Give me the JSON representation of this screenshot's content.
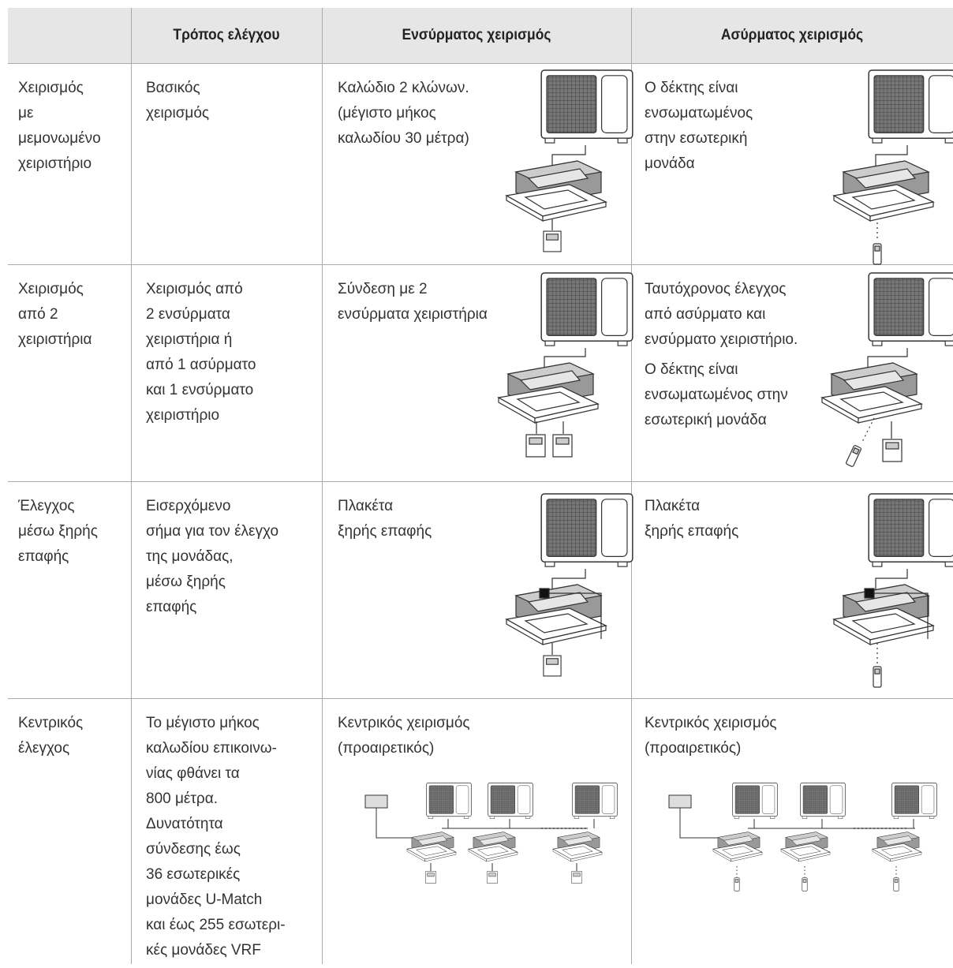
{
  "header": {
    "cells": [
      "Τρόπος ελέγχου",
      "Ενσύρματος χειρισμός",
      "Ασύρματος χειρισμός"
    ]
  },
  "table": {
    "rows": [
      {
        "cells": [
          [
            [
              "Χειρισμός",
              "με",
              "μεμονωμένο",
              "χειριστήριο"
            ]
          ],
          [
            [
              "Βασικός",
              "χειρισμός"
            ]
          ],
          [
            [
              "Καλώδιο 2 κλώνων.",
              "(μέγιστο μήκος",
              "καλωδίου 30 μέτρα)"
            ]
          ],
          [
            [
              "Ο δέκτης είναι",
              "ενσωματωμένος",
              "στην εσωτερική",
              "μονάδα"
            ]
          ]
        ]
      },
      {
        "cells": [
          [
            [
              "Χειρισμός",
              "από 2",
              "χειριστήρια"
            ]
          ],
          [
            [
              "Χειρισμός από",
              "2 ενσύρματα",
              "χειριστήρια ή",
              "από 1 ασύρματο",
              "και 1 ενσύρματο",
              "χειριστήριο"
            ]
          ],
          [
            [
              "Σύνδεση με 2",
              "ενσύρματα χειριστήρια"
            ]
          ],
          [
            [
              "Ταυτόχρονος έλεγχος",
              "από ασύρματο και",
              "ενσύρματο χειριστήριο."
            ],
            [
              "Ο δέκτης είναι",
              "ενσωματωμένος στην",
              "εσωτερική μονάδα"
            ]
          ]
        ]
      },
      {
        "cells": [
          [
            [
              "Έλεγχος",
              "μέσω ξηρής",
              "επαφής"
            ]
          ],
          [
            [
              "Εισερχόμενο",
              "σήμα για τον έλεγχο",
              "της μονάδας,",
              "μέσω ξηρής",
              "επαφής"
            ]
          ],
          [
            [
              "Πλακέτα",
              "ξηρής επαφής"
            ]
          ],
          [
            [
              "Πλακέτα",
              "ξηρής επαφής"
            ]
          ]
        ]
      },
      {
        "cells": [
          [
            [
              "Κεντρικός",
              "έλεγχος"
            ]
          ],
          [
            [
              "Το μέγιστο μήκος",
              "καλωδίου επικοινω-",
              "νίας φθάνει τα",
              "800 μέτρα.",
              "Δυνατότητα",
              "σύνδεσης έως",
              "36 εσωτερικές",
              "μονάδες U-Match",
              "και έως 255 εσωτερι-",
              "κές μονάδες VRF"
            ]
          ],
          [
            [
              "Κεντρικός χειρισμός",
              "(προαιρετικός)"
            ]
          ],
          [
            [
              "Κεντρικός χειρισμός",
              "(προαιρετικός)"
            ]
          ]
        ]
      }
    ]
  }
}
